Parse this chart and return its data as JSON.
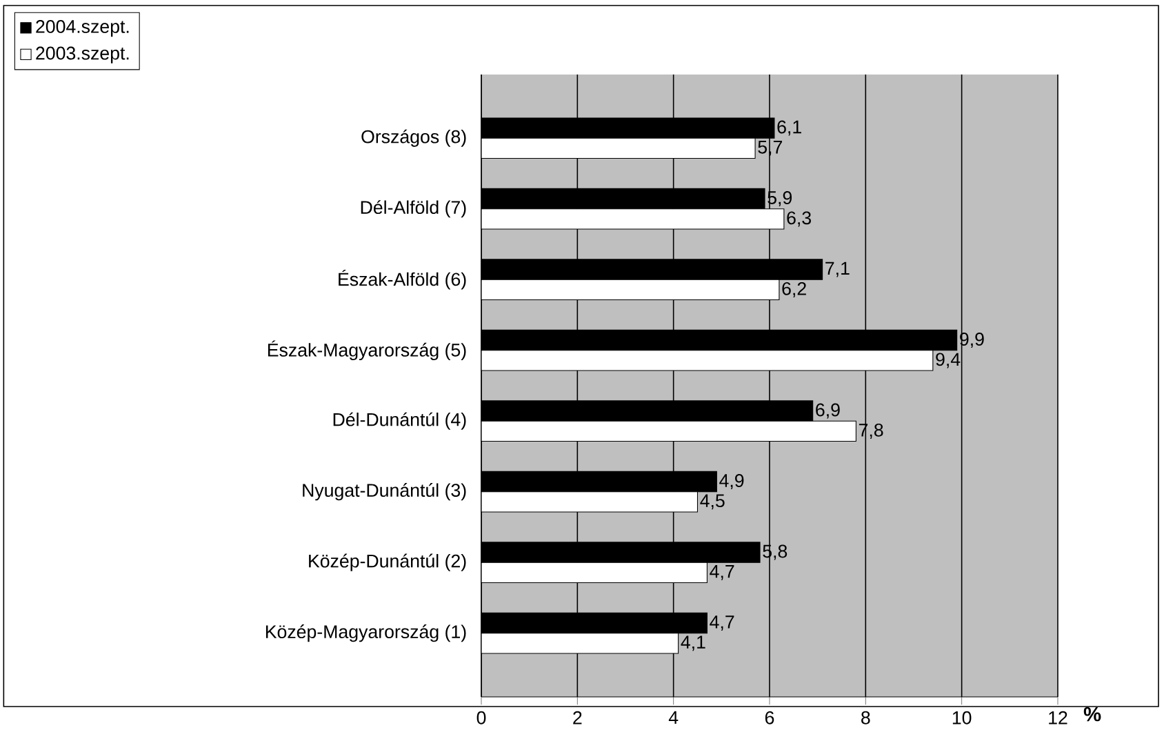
{
  "chart_data": {
    "type": "bar",
    "orientation": "horizontal",
    "xlabel": "%",
    "categories": [
      "Országos (8)",
      "Dél-Alföld (7)",
      "Észak-Alföld (6)",
      "Észak-Magyarország (5)",
      "Dél-Dunántúl (4)",
      "Nyugat-Dunántúl (3)",
      "Közép-Dunántúl (2)",
      "Közép-Magyarország (1)"
    ],
    "series": [
      {
        "name": "2004.szept.",
        "color": "#000000",
        "values": [
          6.1,
          5.9,
          7.1,
          9.9,
          6.9,
          4.9,
          5.8,
          4.7
        ],
        "value_labels": [
          "6,1",
          "5,9",
          "7,1",
          "9,9",
          "6,9",
          "4,9",
          "5,8",
          "4,7"
        ]
      },
      {
        "name": "2003.szept.",
        "color": "#ffffff",
        "values": [
          5.7,
          6.3,
          6.2,
          9.4,
          7.8,
          4.5,
          4.7,
          4.1
        ],
        "value_labels": [
          "5,7",
          "6,3",
          "6,2",
          "9,4",
          "7,8",
          "4,5",
          "4,7",
          "4,1"
        ]
      }
    ],
    "xlim": [
      0,
      12
    ],
    "xticks": [
      0,
      2,
      4,
      6,
      8,
      10,
      12
    ],
    "grid": "x",
    "legend": "top left"
  }
}
